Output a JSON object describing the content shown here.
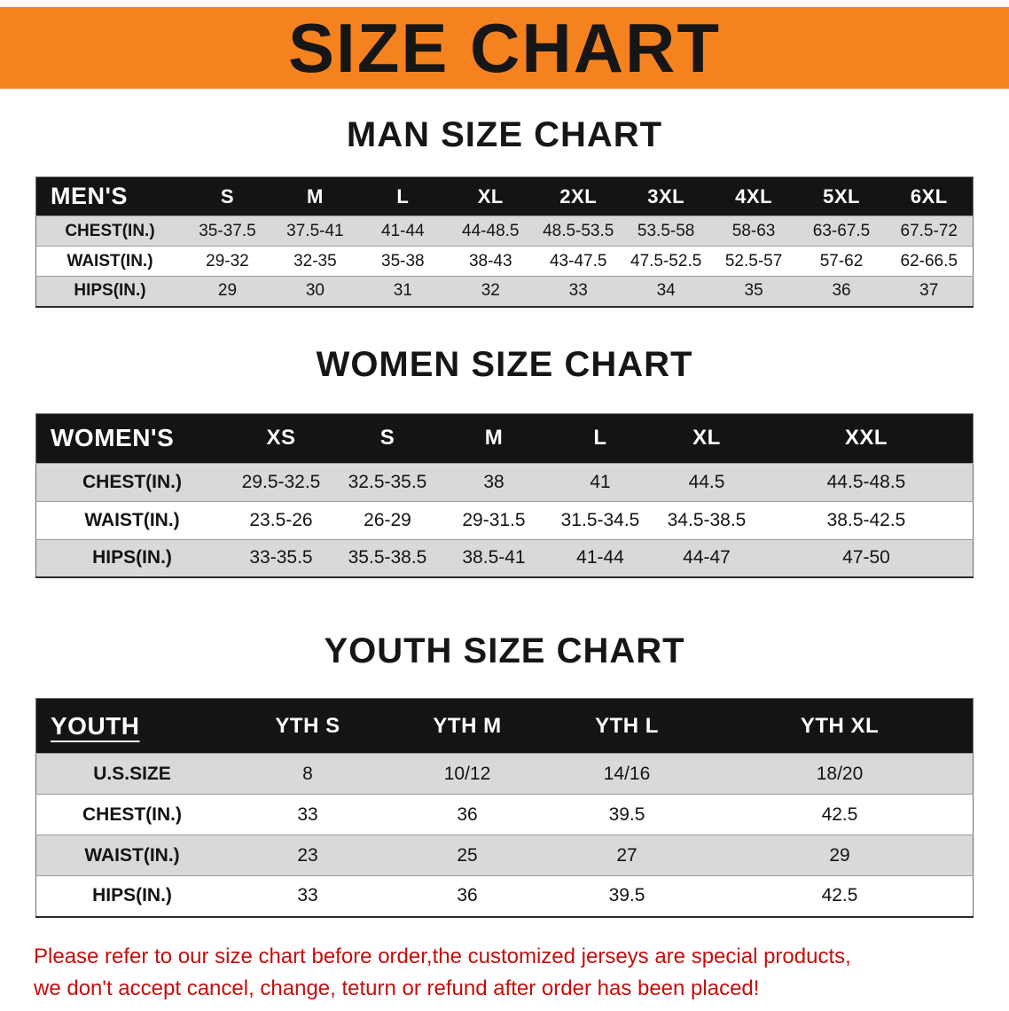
{
  "banner": {
    "title": "SIZE CHART"
  },
  "men": {
    "heading": "MAN SIZE CHART",
    "table": {
      "header": [
        "MEN'S",
        "S",
        "M",
        "L",
        "XL",
        "2XL",
        "3XL",
        "4XL",
        "5XL",
        "6XL"
      ],
      "rows": [
        [
          "CHEST(IN.)",
          "35-37.5",
          "37.5-41",
          "41-44",
          "44-48.5",
          "48.5-53.5",
          "53.5-58",
          "58-63",
          "63-67.5",
          "67.5-72"
        ],
        [
          "WAIST(IN.)",
          "29-32",
          "32-35",
          "35-38",
          "38-43",
          "43-47.5",
          "47.5-52.5",
          "52.5-57",
          "57-62",
          "62-66.5"
        ],
        [
          "HIPS(IN.)",
          "29",
          "30",
          "31",
          "32",
          "33",
          "34",
          "35",
          "36",
          "37"
        ]
      ]
    }
  },
  "women": {
    "heading": "WOMEN SIZE CHART",
    "table": {
      "header": [
        "WOMEN'S",
        "XS",
        "S",
        "M",
        "L",
        "XL",
        "XXL"
      ],
      "rows": [
        [
          "CHEST(IN.)",
          "29.5-32.5",
          "32.5-35.5",
          "38",
          "41",
          "44.5",
          "44.5-48.5"
        ],
        [
          "WAIST(IN.)",
          "23.5-26",
          "26-29",
          "29-31.5",
          "31.5-34.5",
          "34.5-38.5",
          "38.5-42.5"
        ],
        [
          "HIPS(IN.)",
          "33-35.5",
          "35.5-38.5",
          "38.5-41",
          "41-44",
          "44-47",
          "47-50"
        ]
      ]
    }
  },
  "youth": {
    "heading": "YOUTH SIZE CHART",
    "table": {
      "header": [
        "YOUTH",
        "YTH S",
        "YTH M",
        "YTH L",
        "YTH XL"
      ],
      "rows": [
        [
          "U.S.SIZE",
          "8",
          "10/12",
          "14/16",
          "18/20"
        ],
        [
          "CHEST(IN.)",
          "33",
          "36",
          "39.5",
          "42.5"
        ],
        [
          "WAIST(IN.)",
          "23",
          "25",
          "27",
          "29"
        ],
        [
          "HIPS(IN.)",
          "33",
          "36",
          "39.5",
          "42.5"
        ]
      ]
    }
  },
  "disclaimer": {
    "line1": "Please refer to our size chart before order,the customized jerseys are special products,",
    "line2": "we don't accept cancel, change, teturn or refund after order has been placed!"
  },
  "colors": {
    "banner_bg": "#f5821f",
    "banner_text": "#161616",
    "table_header_bg": "#141414",
    "table_header_text": "#ffffff",
    "row_stripe": "#d9d9d9",
    "disclaimer_red": "#c60d0d"
  }
}
